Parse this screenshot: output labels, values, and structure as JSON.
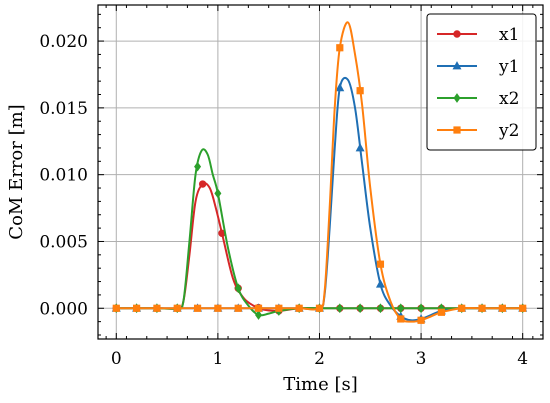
{
  "chart_data": {
    "type": "line",
    "xlabel": "Time [s]",
    "ylabel": "CoM Error [m]",
    "xlim": [
      -0.18,
      4.2
    ],
    "ylim": [
      -0.0023,
      0.0227
    ],
    "x_ticks": [
      0,
      1,
      2,
      3,
      4
    ],
    "x_tick_labels": [
      "0",
      "1",
      "2",
      "3",
      "4"
    ],
    "y_ticks": [
      0.0,
      0.005,
      0.01,
      0.015,
      0.02
    ],
    "y_tick_labels": [
      "0.000",
      "0.005",
      "0.010",
      "0.015",
      "0.020"
    ],
    "grid": true,
    "legend_position": "top-right",
    "series": [
      {
        "name": "x1",
        "color": "#d62728",
        "marker": "circle",
        "x": [
          0,
          0.2,
          0.4,
          0.6,
          0.66,
          0.72,
          0.78,
          0.85,
          0.92,
          0.98,
          1.05,
          1.15,
          1.25,
          1.35,
          1.45,
          1.6,
          1.8,
          2.0,
          2.2,
          2.4,
          2.6,
          2.8,
          3.0,
          3.2,
          3.4,
          3.6,
          3.8,
          4.0
        ],
        "y": [
          0,
          0,
          0,
          0,
          0.0005,
          0.004,
          0.008,
          0.0093,
          0.009,
          0.0075,
          0.0053,
          0.0022,
          0.0008,
          0.0002,
          -0.0001,
          -0.0002,
          0,
          0,
          0,
          0,
          0,
          0,
          0,
          0,
          0,
          0,
          0,
          0
        ],
        "marker_x": [
          0,
          0.2,
          0.4,
          0.6,
          0.85,
          1.04,
          1.2,
          1.4,
          1.6,
          1.8,
          2.0,
          2.2,
          2.4,
          2.6,
          2.8,
          3.0,
          3.2,
          3.4,
          3.6,
          3.8,
          4.0
        ]
      },
      {
        "name": "y1",
        "color": "#1f6fb4",
        "marker": "triangle",
        "x": [
          0,
          0.2,
          0.4,
          0.6,
          0.8,
          1.0,
          1.2,
          1.4,
          1.6,
          1.8,
          2.0,
          2.05,
          2.1,
          2.15,
          2.2,
          2.28,
          2.35,
          2.42,
          2.5,
          2.6,
          2.7,
          2.8,
          2.9,
          3.0,
          3.1,
          3.2,
          3.4,
          3.6,
          3.8,
          4.0
        ],
        "y": [
          0,
          0,
          0,
          0,
          0,
          0,
          0,
          0,
          0,
          0,
          0,
          0.001,
          0.006,
          0.012,
          0.0165,
          0.0171,
          0.015,
          0.0108,
          0.006,
          0.0018,
          0.0002,
          -0.0006,
          -0.0009,
          -0.0008,
          -0.0005,
          -0.0002,
          0,
          0,
          0,
          0
        ],
        "marker_x": [
          0,
          0.2,
          0.4,
          0.6,
          0.8,
          1.0,
          1.2,
          1.4,
          1.6,
          1.8,
          2.0,
          2.2,
          2.4,
          2.6,
          2.8,
          3.0,
          3.2,
          3.4,
          3.6,
          3.8,
          4.0
        ]
      },
      {
        "name": "x2",
        "color": "#2ca02c",
        "marker": "diamond",
        "x": [
          0,
          0.2,
          0.4,
          0.6,
          0.66,
          0.72,
          0.78,
          0.84,
          0.9,
          0.95,
          1.0,
          1.1,
          1.2,
          1.3,
          1.4,
          1.5,
          1.6,
          1.8,
          2.0,
          2.2,
          2.4,
          2.6,
          2.8,
          3.0,
          3.2,
          3.4,
          3.6,
          3.8,
          4.0
        ],
        "y": [
          0,
          0,
          0,
          0,
          0.0005,
          0.005,
          0.01,
          0.0118,
          0.0115,
          0.01,
          0.0086,
          0.0045,
          0.0015,
          0.0002,
          -0.0005,
          -0.0004,
          -0.0002,
          0,
          0,
          0,
          0,
          0,
          0,
          0,
          0,
          0,
          0,
          0,
          0
        ],
        "marker_x": [
          0,
          0.2,
          0.4,
          0.6,
          0.8,
          1.0,
          1.2,
          1.4,
          1.6,
          1.8,
          2.0,
          2.2,
          2.4,
          2.6,
          2.8,
          3.0,
          3.2,
          3.4,
          3.6,
          3.8,
          4.0
        ]
      },
      {
        "name": "y2",
        "color": "#ff7f0e",
        "marker": "square",
        "x": [
          0,
          0.2,
          0.4,
          0.6,
          0.8,
          1.0,
          1.2,
          1.4,
          1.6,
          1.8,
          2.0,
          2.05,
          2.1,
          2.15,
          2.2,
          2.28,
          2.35,
          2.42,
          2.5,
          2.6,
          2.7,
          2.8,
          2.9,
          3.0,
          3.1,
          3.2,
          3.4,
          3.6,
          3.8,
          4.0
        ],
        "y": [
          0,
          0,
          0,
          0,
          0,
          0,
          0,
          0,
          0,
          0,
          0,
          0.0012,
          0.0075,
          0.015,
          0.0195,
          0.0214,
          0.019,
          0.0152,
          0.009,
          0.0033,
          0.0005,
          -0.0008,
          -0.001,
          -0.0009,
          -0.0006,
          -0.0003,
          0,
          0,
          0,
          0
        ],
        "marker_x": [
          0,
          0.2,
          0.4,
          0.6,
          0.8,
          1.0,
          1.2,
          1.4,
          1.6,
          1.8,
          2.0,
          2.2,
          2.4,
          2.6,
          2.8,
          3.0,
          3.2,
          3.4,
          3.6,
          3.8,
          4.0
        ]
      }
    ]
  }
}
